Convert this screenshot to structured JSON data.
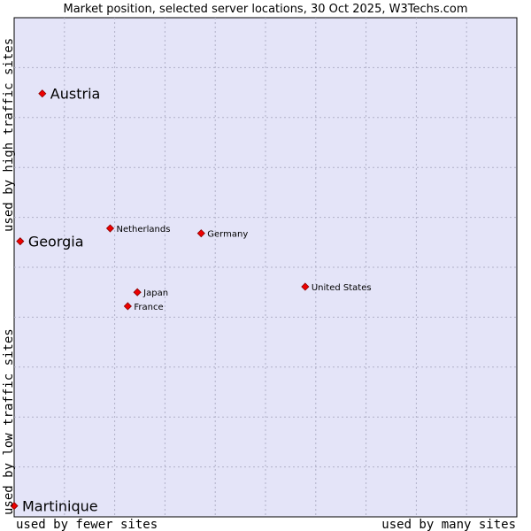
{
  "chart_data": {
    "type": "scatter",
    "title": "Market position, selected server locations, 30 Oct 2025, W3Techs.com",
    "xlabel_left": "used by fewer sites",
    "xlabel_right": "used by many sites",
    "ylabel_top": "used by high traffic sites",
    "ylabel_bottom": "used by low traffic sites",
    "xlim": [
      0,
      100
    ],
    "ylim": [
      0,
      100
    ],
    "grid": true,
    "grid_divisions": 10,
    "points": [
      {
        "label": "Austria",
        "x": 5.6,
        "y": 84.8,
        "emphasis": true
      },
      {
        "label": "Georgia",
        "x": 1.2,
        "y": 55.2,
        "emphasis": true
      },
      {
        "label": "Martinique",
        "x": -0.3,
        "y": 2.2,
        "emphasis": true
      },
      {
        "label": "Netherlands",
        "x": 19.1,
        "y": 57.8,
        "emphasis": false
      },
      {
        "label": "Germany",
        "x": 37.2,
        "y": 56.8,
        "emphasis": false
      },
      {
        "label": "United States",
        "x": 57.9,
        "y": 46.1,
        "emphasis": false
      },
      {
        "label": "Japan",
        "x": 24.5,
        "y": 45.0,
        "emphasis": false
      },
      {
        "label": "France",
        "x": 22.6,
        "y": 42.2,
        "emphasis": false
      }
    ],
    "colors": {
      "plot_background": "#e4e4f8",
      "point_fill": "#ee0000",
      "point_stroke": "#880000"
    }
  }
}
